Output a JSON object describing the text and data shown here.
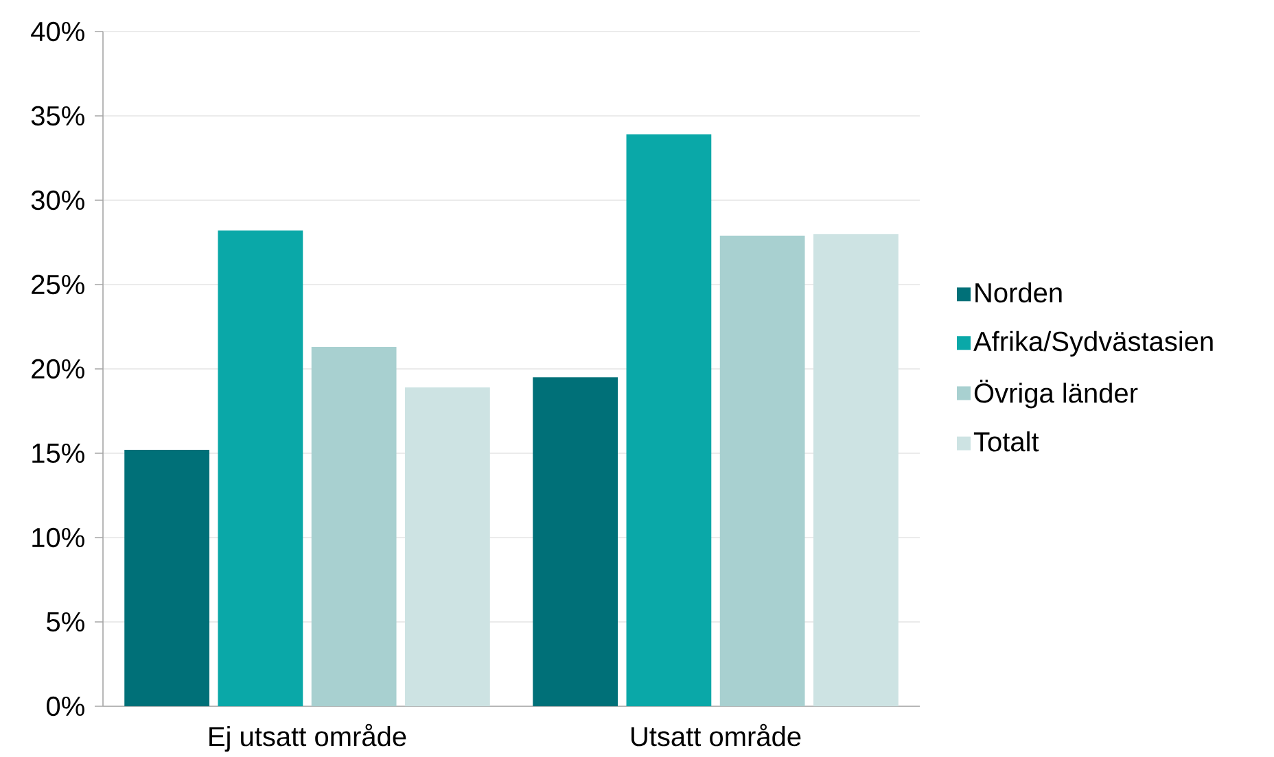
{
  "chart_data": {
    "type": "bar",
    "categories": [
      "Ej utsatt område",
      "Utsatt område"
    ],
    "series": [
      {
        "name": "Norden",
        "color": "#007078",
        "values": [
          15.2,
          19.5
        ]
      },
      {
        "name": "Afrika/Sydvästasien",
        "color": "#0aa8a8",
        "values": [
          28.2,
          33.9
        ]
      },
      {
        "name": "Övriga länder",
        "color": "#a8d0d0",
        "values": [
          21.3,
          27.9
        ]
      },
      {
        "name": "Totalt",
        "color": "#cde3e3",
        "values": [
          18.9,
          28.0
        ]
      }
    ],
    "ylim": [
      0,
      40
    ],
    "yticks": [
      {
        "value": 0,
        "label": "0%"
      },
      {
        "value": 5,
        "label": "5%"
      },
      {
        "value": 10,
        "label": "10%"
      },
      {
        "value": 15,
        "label": "15%"
      },
      {
        "value": 20,
        "label": "20%"
      },
      {
        "value": 25,
        "label": "25%"
      },
      {
        "value": 30,
        "label": "30%"
      },
      {
        "value": 35,
        "label": "35%"
      },
      {
        "value": 40,
        "label": "40%"
      }
    ],
    "grid": "y",
    "legend": "right"
  }
}
